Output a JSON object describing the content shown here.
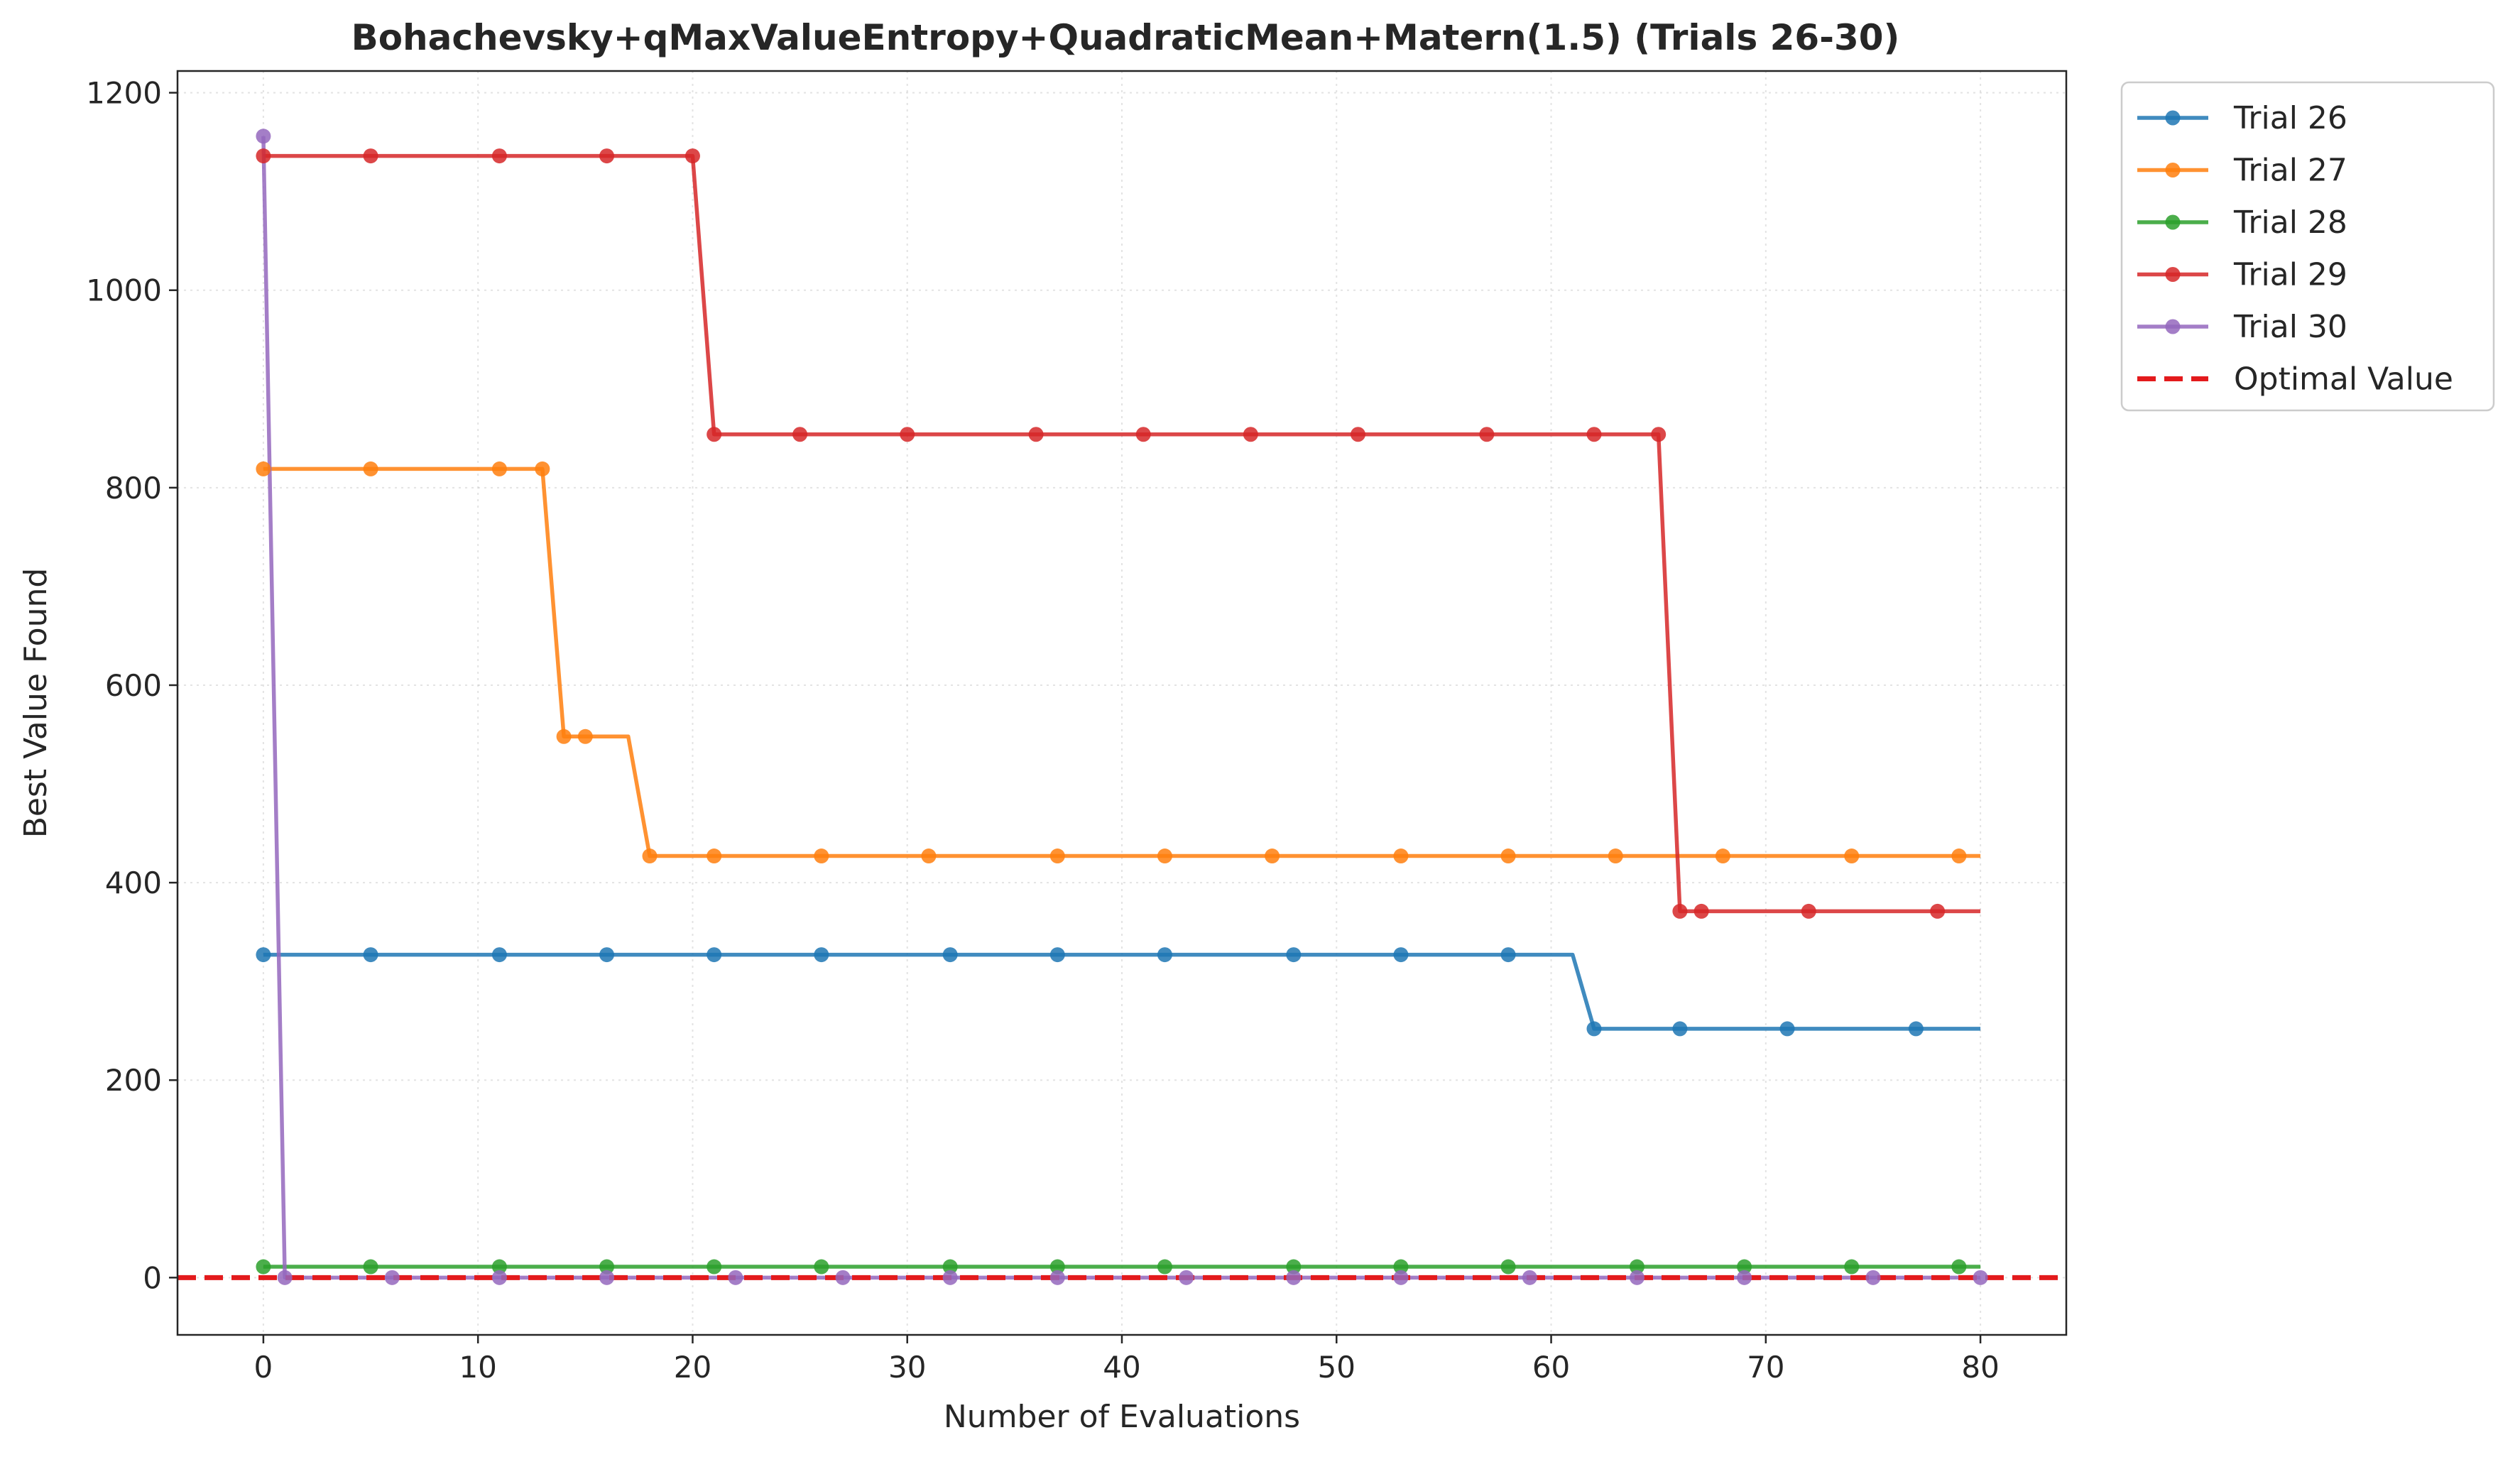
{
  "chart_data": {
    "type": "line",
    "title": "Bohachevsky+qMaxValueEntropy+QuadraticMean+Matern(1.5) (Trials 26-30)",
    "xlabel": "Number of Evaluations",
    "ylabel": "Best Value Found",
    "xlim": [
      -4,
      84
    ],
    "ylim": [
      -58,
      1222
    ],
    "xticks": [
      0,
      10,
      20,
      30,
      40,
      50,
      60,
      70,
      80
    ],
    "yticks": [
      0,
      200,
      400,
      600,
      800,
      1000,
      1200
    ],
    "grid": true,
    "legend_position": "outside-top-right",
    "series": [
      {
        "name": "Trial 26",
        "color": "#1f77b4",
        "x": [
          0,
          61,
          62,
          80
        ],
        "y": [
          327,
          327,
          252,
          252
        ],
        "markers_x": [
          0,
          5,
          11,
          16,
          21,
          26,
          32,
          37,
          42,
          48,
          53,
          58,
          62,
          66,
          71,
          77
        ]
      },
      {
        "name": "Trial 27",
        "color": "#ff7f0e",
        "x": [
          0,
          13,
          14,
          17,
          18,
          80
        ],
        "y": [
          819,
          819,
          548,
          548,
          427,
          427
        ],
        "markers_x": [
          0,
          5,
          11,
          13,
          14,
          15,
          18,
          21,
          26,
          31,
          37,
          42,
          47,
          53,
          58,
          63,
          68,
          74,
          79
        ]
      },
      {
        "name": "Trial 28",
        "color": "#2ca02c",
        "x": [
          0,
          80
        ],
        "y": [
          11,
          11
        ],
        "markers_x": [
          0,
          5,
          11,
          16,
          21,
          26,
          32,
          37,
          42,
          48,
          53,
          58,
          64,
          69,
          74,
          79
        ]
      },
      {
        "name": "Trial 29",
        "color": "#d62728",
        "x": [
          0,
          20,
          21,
          65,
          66,
          80
        ],
        "y": [
          1136,
          1136,
          854,
          854,
          371,
          371
        ],
        "markers_x": [
          0,
          5,
          11,
          16,
          20,
          21,
          25,
          30,
          36,
          41,
          46,
          51,
          57,
          62,
          65,
          66,
          67,
          72,
          78
        ]
      },
      {
        "name": "Trial 30",
        "color": "#9467bd",
        "x": [
          0,
          1,
          80
        ],
        "y": [
          1156,
          0,
          0
        ],
        "markers_x": [
          0,
          1,
          6,
          11,
          16,
          22,
          27,
          32,
          37,
          43,
          48,
          53,
          59,
          64,
          69,
          75,
          80
        ]
      }
    ],
    "reference_line": {
      "name": "Optimal Value",
      "y": 0,
      "color": "#e31a1c",
      "style": "dashed"
    }
  }
}
